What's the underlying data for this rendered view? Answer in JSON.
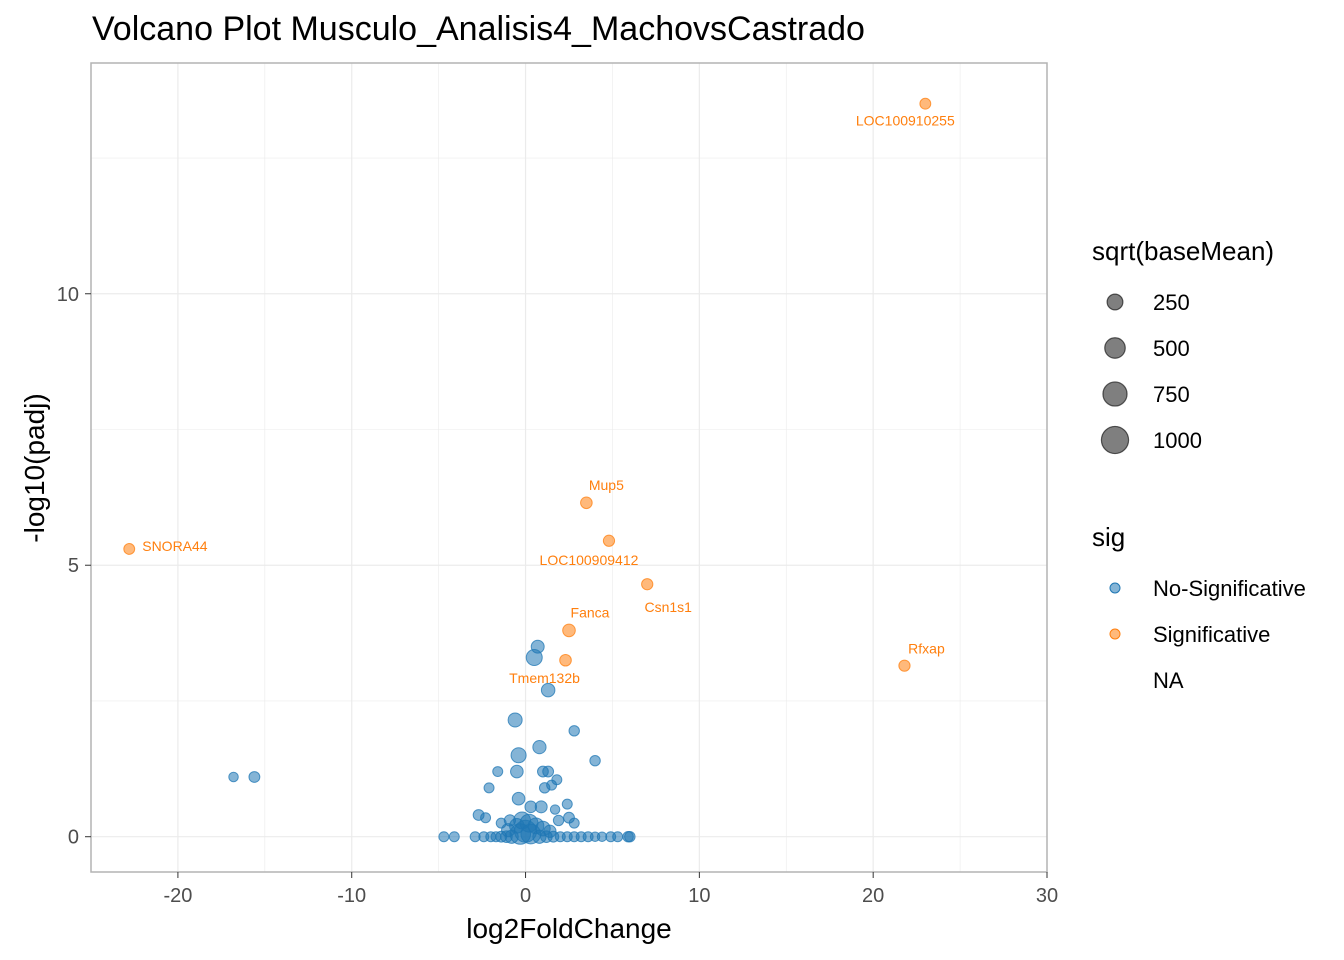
{
  "chart_data": {
    "type": "scatter",
    "title": "Volcano Plot Musculo_Analisis4_MachovsCastrado",
    "xlabel": "log2FoldChange",
    "ylabel": "-log10(padj)",
    "xlim": [
      -25,
      30
    ],
    "ylim": [
      -0.65,
      14.25
    ],
    "x_ticks": [
      -20,
      -10,
      0,
      10,
      20,
      30
    ],
    "y_ticks": [
      0,
      5,
      10
    ],
    "grid": true,
    "colors": {
      "No-Significative": "#1f77b4",
      "Significative": "#ff7f0e"
    },
    "legend_size": {
      "title": "sqrt(baseMean)",
      "entries": [
        {
          "label": "250",
          "size": 250
        },
        {
          "label": "500",
          "size": 500
        },
        {
          "label": "750",
          "size": 750
        },
        {
          "label": "1000",
          "size": 1000
        }
      ]
    },
    "legend_color": {
      "title": "sig",
      "entries": [
        {
          "label": "No-Significative",
          "color": "#1f77b4"
        },
        {
          "label": "Significative",
          "color": "#ff7f0e"
        },
        {
          "label": "NA",
          "color": ""
        }
      ]
    },
    "series": [
      {
        "name": "Significative",
        "points": [
          {
            "x": 23.0,
            "y": 13.5,
            "size": 80,
            "label": "LOC100910255"
          },
          {
            "x": -22.8,
            "y": 5.3,
            "size": 80,
            "label": "SNORA44"
          },
          {
            "x": 3.5,
            "y": 6.15,
            "size": 100,
            "label": "Mup5"
          },
          {
            "x": 4.8,
            "y": 5.45,
            "size": 90,
            "label": "LOC100909412"
          },
          {
            "x": 7.0,
            "y": 4.65,
            "size": 90,
            "label": "Csn1s1"
          },
          {
            "x": 2.5,
            "y": 3.8,
            "size": 130,
            "label": "Fanca"
          },
          {
            "x": 2.3,
            "y": 3.25,
            "size": 100,
            "label": "Tmem132b"
          },
          {
            "x": 21.8,
            "y": 3.15,
            "size": 90,
            "label": "Rfxap"
          }
        ]
      },
      {
        "name": "No-Significative",
        "points": [
          {
            "x": -16.8,
            "y": 1.1,
            "size": 50
          },
          {
            "x": -15.6,
            "y": 1.1,
            "size": 80
          },
          {
            "x": 0.7,
            "y": 3.5,
            "size": 140
          },
          {
            "x": 0.5,
            "y": 3.3,
            "size": 260
          },
          {
            "x": 1.3,
            "y": 2.7,
            "size": 160
          },
          {
            "x": -0.6,
            "y": 2.15,
            "size": 180
          },
          {
            "x": 2.8,
            "y": 1.95,
            "size": 70
          },
          {
            "x": 0.8,
            "y": 1.65,
            "size": 150
          },
          {
            "x": -0.4,
            "y": 1.5,
            "size": 220
          },
          {
            "x": 4.0,
            "y": 1.4,
            "size": 70
          },
          {
            "x": -1.6,
            "y": 1.2,
            "size": 60
          },
          {
            "x": -0.5,
            "y": 1.2,
            "size": 130
          },
          {
            "x": 1.0,
            "y": 1.2,
            "size": 80
          },
          {
            "x": 1.3,
            "y": 1.2,
            "size": 80
          },
          {
            "x": 1.8,
            "y": 1.05,
            "size": 60
          },
          {
            "x": 1.5,
            "y": 0.95,
            "size": 60
          },
          {
            "x": -2.1,
            "y": 0.9,
            "size": 60
          },
          {
            "x": 1.1,
            "y": 0.9,
            "size": 70
          },
          {
            "x": -0.4,
            "y": 0.7,
            "size": 130
          },
          {
            "x": 0.9,
            "y": 0.55,
            "size": 110
          },
          {
            "x": 2.4,
            "y": 0.6,
            "size": 60
          },
          {
            "x": 0.3,
            "y": 0.55,
            "size": 100
          },
          {
            "x": 1.7,
            "y": 0.5,
            "size": 50
          },
          {
            "x": -2.7,
            "y": 0.4,
            "size": 80
          },
          {
            "x": -2.3,
            "y": 0.35,
            "size": 60
          },
          {
            "x": 2.5,
            "y": 0.35,
            "size": 80
          },
          {
            "x": -0.9,
            "y": 0.3,
            "size": 90
          },
          {
            "x": 1.9,
            "y": 0.3,
            "size": 70
          },
          {
            "x": 2.8,
            "y": 0.25,
            "size": 60
          },
          {
            "x": -1.4,
            "y": 0.25,
            "size": 60
          },
          {
            "x": -0.2,
            "y": 0.3,
            "size": 300
          },
          {
            "x": 0.2,
            "y": 0.25,
            "size": 350
          },
          {
            "x": 0.6,
            "y": 0.2,
            "size": 250
          },
          {
            "x": -0.5,
            "y": 0.2,
            "size": 200
          },
          {
            "x": 1.0,
            "y": 0.15,
            "size": 200
          },
          {
            "x": -1.0,
            "y": 0.12,
            "size": 150
          },
          {
            "x": 1.4,
            "y": 0.1,
            "size": 120
          },
          {
            "x": 0.0,
            "y": 0.1,
            "size": 600
          },
          {
            "x": -0.3,
            "y": 0.05,
            "size": 500
          },
          {
            "x": 0.3,
            "y": 0.05,
            "size": 450
          },
          {
            "x": -4.7,
            "y": 0.0,
            "size": 60
          },
          {
            "x": -4.1,
            "y": 0.0,
            "size": 60
          },
          {
            "x": -2.9,
            "y": 0.0,
            "size": 60
          },
          {
            "x": -2.4,
            "y": 0.0,
            "size": 60
          },
          {
            "x": -2.0,
            "y": 0.0,
            "size": 60
          },
          {
            "x": -1.7,
            "y": 0.0,
            "size": 60
          },
          {
            "x": -1.4,
            "y": 0.0,
            "size": 80
          },
          {
            "x": -1.1,
            "y": 0.0,
            "size": 100
          },
          {
            "x": -0.8,
            "y": 0.0,
            "size": 150
          },
          {
            "x": 0.8,
            "y": 0.0,
            "size": 150
          },
          {
            "x": 1.2,
            "y": 0.0,
            "size": 100
          },
          {
            "x": 1.6,
            "y": 0.0,
            "size": 80
          },
          {
            "x": 2.0,
            "y": 0.0,
            "size": 60
          },
          {
            "x": 2.4,
            "y": 0.0,
            "size": 60
          },
          {
            "x": 2.8,
            "y": 0.0,
            "size": 60
          },
          {
            "x": 3.2,
            "y": 0.0,
            "size": 60
          },
          {
            "x": 3.6,
            "y": 0.0,
            "size": 60
          },
          {
            "x": 4.0,
            "y": 0.0,
            "size": 50
          },
          {
            "x": 4.4,
            "y": 0.0,
            "size": 50
          },
          {
            "x": 4.9,
            "y": 0.0,
            "size": 60
          },
          {
            "x": 5.3,
            "y": 0.0,
            "size": 60
          },
          {
            "x": 5.9,
            "y": 0.0,
            "size": 70
          },
          {
            "x": 6.0,
            "y": 0.0,
            "size": 70
          }
        ]
      }
    ]
  }
}
